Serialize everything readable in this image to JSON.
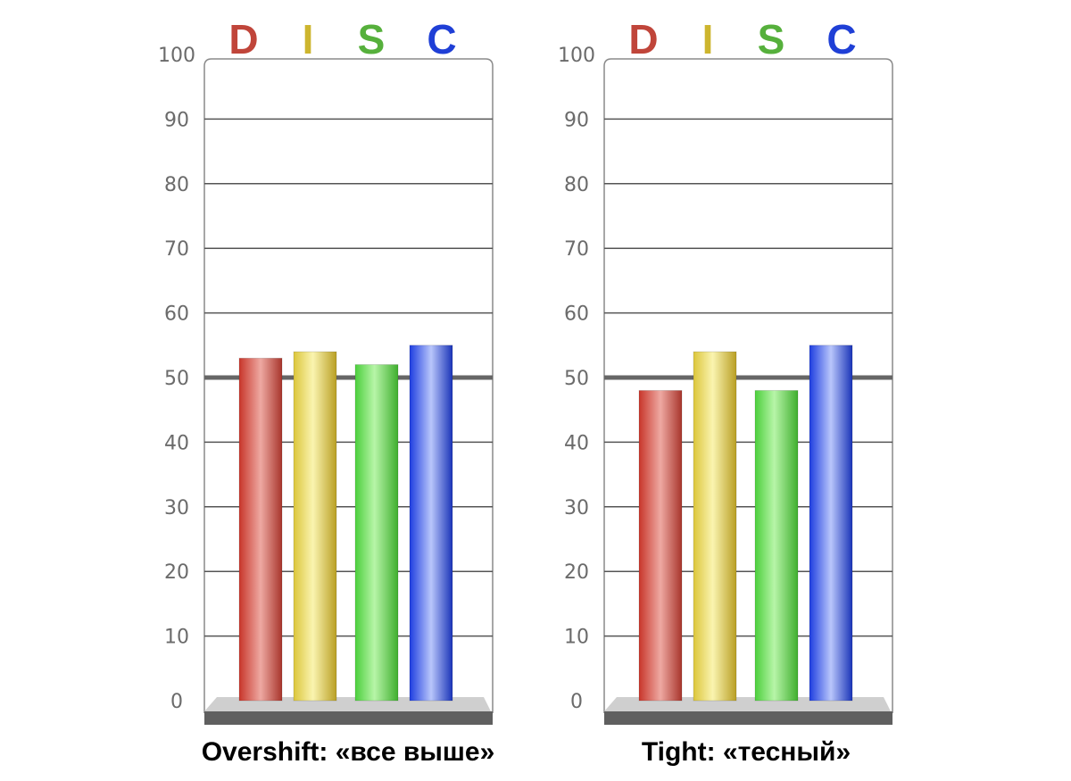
{
  "chart_data": [
    {
      "type": "bar",
      "title": "Overshift: «все выше»",
      "categories": [
        "D",
        "I",
        "S",
        "C"
      ],
      "values": [
        53,
        54,
        52,
        55
      ],
      "ylim": [
        0,
        100
      ],
      "yticks": [
        0,
        10,
        20,
        30,
        40,
        50,
        60,
        70,
        80,
        90,
        100
      ],
      "reference_line": 50,
      "grid": true,
      "category_colors": [
        "#c0453a",
        "#cdb52e",
        "#56b03c",
        "#1f3fd6"
      ]
    },
    {
      "type": "bar",
      "title": "Tight: «тесный»",
      "categories": [
        "D",
        "I",
        "S",
        "C"
      ],
      "values": [
        48,
        54,
        48,
        55
      ],
      "ylim": [
        0,
        100
      ],
      "yticks": [
        0,
        10,
        20,
        30,
        40,
        50,
        60,
        70,
        80,
        90,
        100
      ],
      "reference_line": 50,
      "grid": true,
      "category_colors": [
        "#c0453a",
        "#cdb52e",
        "#56b03c",
        "#1f3fd6"
      ]
    }
  ]
}
